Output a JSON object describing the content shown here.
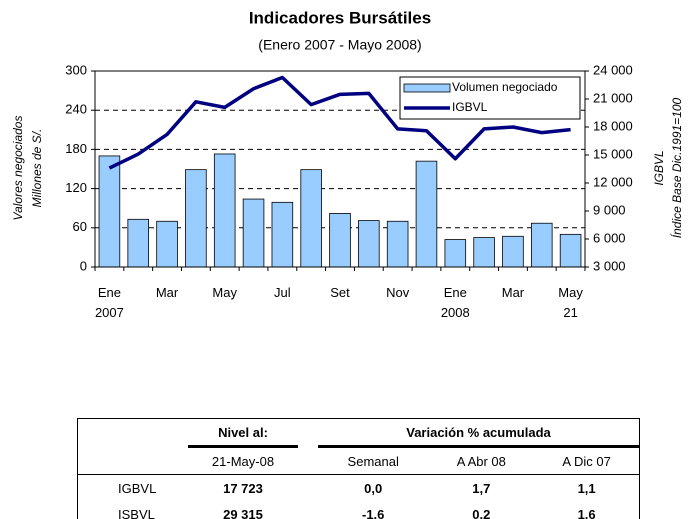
{
  "chart_data": {
    "type": "bar",
    "title": "Indicadores Bursátiles",
    "subtitle": "(Enero 2007 - Mayo 2008)",
    "categories": [
      "Ene\n2007",
      null,
      "Mar",
      null,
      "May",
      null,
      "Jul",
      null,
      "Set",
      null,
      "Nov",
      null,
      "Ene\n2008",
      null,
      "Mar",
      null,
      "May\n21"
    ],
    "series": [
      {
        "name": "Volumen negociado",
        "type": "bar",
        "color": "#99ccff",
        "values": [
          170,
          73,
          70,
          149,
          173,
          104,
          99,
          149,
          82,
          71,
          70,
          162,
          42,
          45,
          47,
          67,
          50
        ]
      },
      {
        "name": "IGBVL",
        "type": "line",
        "axis": "y2",
        "color": "#000080",
        "values": [
          13600,
          15100,
          17200,
          20700,
          20100,
          22100,
          23300,
          20400,
          21500,
          21600,
          17800,
          17600,
          14600,
          17800,
          18000,
          17400,
          17723
        ]
      }
    ],
    "ylim": [
      0,
      300
    ],
    "yticks": [
      0,
      60,
      120,
      180,
      240,
      300
    ],
    "y2lim": [
      3000,
      24000
    ],
    "y2ticks": [
      {
        "value": 3000,
        "label": "3 000"
      },
      {
        "value": 6000,
        "label": "6 000"
      },
      {
        "value": 9000,
        "label": "9 000"
      },
      {
        "value": 12000,
        "label": "12 000"
      },
      {
        "value": 15000,
        "label": "15 000"
      },
      {
        "value": 18000,
        "label": "18 000"
      },
      {
        "value": 21000,
        "label": "21 000"
      },
      {
        "value": 24000,
        "label": "24 000"
      }
    ],
    "grid": true,
    "legend": "upper right",
    "ylabel": "Valores negociados",
    "ylabel_sub": "Millones de S/.",
    "y2label": "IGBVL",
    "y2label_sub": "Índice Base Dic.1991=100"
  },
  "table": {
    "header": [
      "Nivel al:",
      "Variación % acumulada"
    ],
    "subheader": [
      "21-May-08",
      "Semanal",
      "A Abr 08",
      "A Dic 07"
    ],
    "rows": [
      [
        "IGBVL",
        "17 723",
        "0,0",
        "1,7",
        "1,1"
      ],
      [
        "ISBVL",
        "29 315",
        "-1,6",
        "0,2",
        "1,6"
      ]
    ]
  }
}
